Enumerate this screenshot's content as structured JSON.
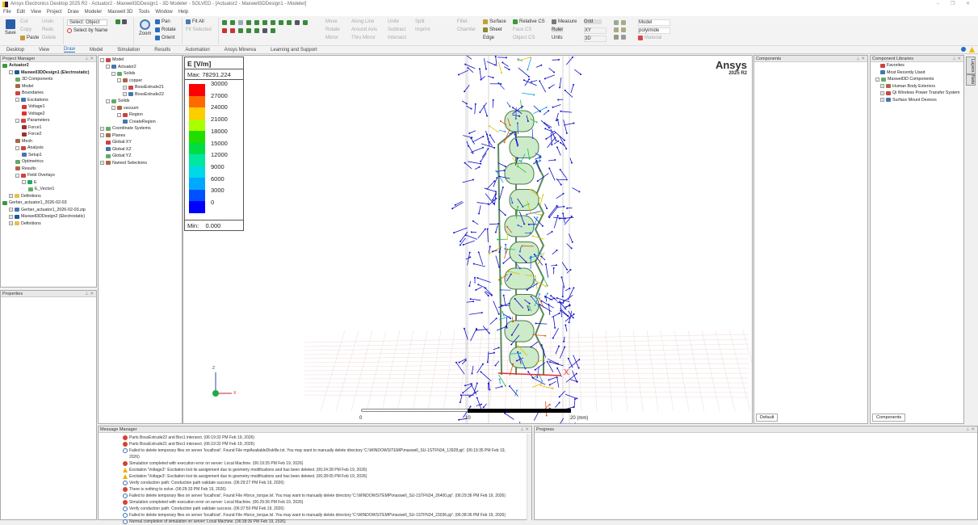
{
  "window": {
    "title": "Ansys Electronics Desktop 2025 R2 - Actuator2 - Maxwell3DDesign1 - 3D Modeler - SOLVED - [Actuator2 - Maxwell3DDesign1 - Modeler]",
    "controls": "–  ❐  ✕"
  },
  "menu": [
    "File",
    "Edit",
    "View",
    "Project",
    "Draw",
    "Modeler",
    "Maxwell 3D",
    "Tools",
    "Window",
    "Help"
  ],
  "ribbon": {
    "save": "Save",
    "cut": "Cut",
    "copy": "Copy",
    "paste": "Paste",
    "undo": "Undo",
    "redo": "Redo",
    "delete": "Delete",
    "select_mode": "Select: Object",
    "select_by_name": "Select by Name",
    "zoom": "Zoom",
    "pan": "Pan",
    "rotate": "Rotate",
    "orient": "Orient",
    "fit_all": "Fit All",
    "fit_selected": "Fit Selected",
    "move": "Move",
    "rotate2": "Rotate",
    "mirror": "Mirror",
    "along_line": "Along Line",
    "around_axis": "Around Axis",
    "thru_mirror": "Thru Mirror",
    "unite": "Unite",
    "subtract": "Subtract",
    "intersect": "Intersect",
    "split": "Split",
    "imprint": "Imprint",
    "fillet": "Fillet",
    "chamfer": "Chamfer",
    "surface": "Surface",
    "sheet": "Sheet",
    "edge": "Edge",
    "relative_cs": "Relative CS",
    "face_cs": "Face CS",
    "object_cs": "Object CS",
    "measure": "Measure",
    "ruler": "Ruler",
    "units": "Units",
    "grid": "Grid",
    "plane": "XY",
    "view_mode": "3D",
    "render_mode": "Model",
    "material_value": "polyimide",
    "material": "Material"
  },
  "tabs": [
    "Desktop",
    "View",
    "Draw",
    "Model",
    "Simulation",
    "Results",
    "Automation",
    "Ansys Minerva",
    "Learning and Support"
  ],
  "active_tab": "Draw",
  "project_manager": {
    "title": "Project Manager",
    "items": [
      {
        "label": "Actuator2",
        "level": 0,
        "icon": "project-icon",
        "bold": true
      },
      {
        "label": "Maxwell3DDesign1 (Electrostatic)",
        "level": 1,
        "icon": "design-icon",
        "bold": true,
        "exp": "-"
      },
      {
        "label": "3D Components",
        "level": 2,
        "icon": "components-icon"
      },
      {
        "label": "Model",
        "level": 2,
        "icon": "model-icon"
      },
      {
        "label": "Boundaries",
        "level": 2,
        "icon": "boundaries-icon"
      },
      {
        "label": "Excitations",
        "level": 2,
        "icon": "excitations-icon",
        "exp": "-"
      },
      {
        "label": "Voltage1",
        "level": 3,
        "icon": "voltage-icon"
      },
      {
        "label": "Voltage2",
        "level": 3,
        "icon": "voltage-icon"
      },
      {
        "label": "Parameters",
        "level": 2,
        "icon": "parameters-icon",
        "exp": "-"
      },
      {
        "label": "Force1",
        "level": 3,
        "icon": "force-icon"
      },
      {
        "label": "Force2",
        "level": 3,
        "icon": "force-icon"
      },
      {
        "label": "Mesh",
        "level": 2,
        "icon": "mesh-icon"
      },
      {
        "label": "Analysis",
        "level": 2,
        "icon": "analysis-icon",
        "exp": "-"
      },
      {
        "label": "Setup1",
        "level": 3,
        "icon": "setup-icon"
      },
      {
        "label": "Optimetrics",
        "level": 2,
        "icon": "optimetrics-icon"
      },
      {
        "label": "Results",
        "level": 2,
        "icon": "results-icon"
      },
      {
        "label": "Field Overlays",
        "level": 2,
        "icon": "field-overlays-icon",
        "exp": "-"
      },
      {
        "label": "E",
        "level": 3,
        "icon": "field-icon",
        "exp": "-"
      },
      {
        "label": "E_Vector1",
        "level": 4,
        "icon": "vector-icon"
      },
      {
        "label": "Definitions",
        "level": 1,
        "icon": "folder-icon",
        "exp": "+"
      },
      {
        "label": "Gerber_actuator1_2026-02-03",
        "level": 0,
        "icon": "project-icon"
      },
      {
        "label": "Gerber_actuator1_2026-02-03.zip",
        "level": 1,
        "icon": "zip-icon",
        "exp": "+"
      },
      {
        "label": "Maxwell3DDesign2 (Electrostatic)",
        "level": 1,
        "icon": "design-icon",
        "exp": "+"
      },
      {
        "label": "Definitions",
        "level": 1,
        "icon": "folder-icon",
        "exp": "+"
      }
    ]
  },
  "properties": {
    "title": "Properties"
  },
  "model_tree": [
    {
      "label": "Model",
      "level": 0,
      "exp": "-"
    },
    {
      "label": "Actuator2",
      "level": 1,
      "exp": "-"
    },
    {
      "label": "Solids",
      "level": 2,
      "exp": "-"
    },
    {
      "label": "copper",
      "level": 3,
      "exp": "-"
    },
    {
      "label": "BossExtrude21",
      "level": 4,
      "exp": "+"
    },
    {
      "label": "BossExtrude22",
      "level": 4,
      "exp": "+"
    },
    {
      "label": "Solids",
      "level": 1,
      "exp": "-"
    },
    {
      "label": "vacuum",
      "level": 2,
      "exp": "-"
    },
    {
      "label": "Region",
      "level": 3,
      "exp": "-"
    },
    {
      "label": "CreateRegion",
      "level": 4
    },
    {
      "label": "Coordinate Systems",
      "level": 0,
      "exp": "+"
    },
    {
      "label": "Planes",
      "level": 0,
      "exp": "-"
    },
    {
      "label": "Global:XY",
      "level": 1
    },
    {
      "label": "Global:XZ",
      "level": 1
    },
    {
      "label": "Global:YZ",
      "level": 1
    },
    {
      "label": "Named Selections",
      "level": 0,
      "exp": "+"
    }
  ],
  "legend": {
    "title": "E [V/m]",
    "max": "Max: 78291.224",
    "min_label": "Min:",
    "min_value": "0.000",
    "ticks": [
      "30000",
      "27000",
      "24000",
      "21000",
      "18000",
      "15000",
      "12000",
      "9000",
      "6000",
      "3000",
      "0"
    ],
    "colors": [
      "#ff0000",
      "#ff6a00",
      "#ffcc00",
      "#aaff00",
      "#22dd00",
      "#00dd44",
      "#00e8a0",
      "#00d8e8",
      "#00a8ff",
      "#0050ff",
      "#0000ff"
    ]
  },
  "brand": {
    "name": "Ansys",
    "version": "2025 R2"
  },
  "ruler": {
    "ticks": [
      "0",
      "10",
      "20 (mm)"
    ]
  },
  "axes": {
    "z": "Z",
    "x": "X",
    "x_red": "X"
  },
  "components": {
    "title": "Components",
    "tab": "Default"
  },
  "component_libraries": {
    "title": "Component Libraries",
    "tab": "Components",
    "items": [
      {
        "label": "Favorites",
        "level": 1
      },
      {
        "label": "Most Recently Used",
        "level": 1
      },
      {
        "label": "Maxwell3D Components",
        "level": 0,
        "exp": "-"
      },
      {
        "label": "Human Body Exteriors",
        "level": 1,
        "exp": "+"
      },
      {
        "label": "Qi Wireless Power Transfer System",
        "level": 1,
        "exp": "+"
      },
      {
        "label": "Surface Mount Devices",
        "level": 1,
        "exp": "+"
      }
    ]
  },
  "side_tabs": [
    "Layers",
    "Nets"
  ],
  "message_manager": {
    "title": "Message Manager",
    "messages": [
      {
        "type": "err",
        "text": "Parts BossExtrude22 and Box1 intersect. (06:19:32 PM  Feb 19, 2026)"
      },
      {
        "type": "err",
        "text": "Parts BossExtrude21 and Box1 intersect. (06:19:32 PM  Feb 19, 2026)"
      },
      {
        "type": "info",
        "text": "Failed to delete temporary files on server 'localhost'. Found File mpiAvailableDiskfile.txt. You may want to manually delete directory 'C:\\WINDOWS\\TEMP\\maxwell_SU-1STFN34_13928.pjt'. (06:19:35 PM  Feb 19,"
      },
      {
        "type": "none",
        "text": "2026)"
      },
      {
        "type": "err",
        "text": "Simulation completed with execution error on server: Local Machine. (06:19:35 PM  Feb 19, 2026)"
      },
      {
        "type": "warn",
        "text": "Excitation 'Voltage3': Excitation lost its assignment due to geometry modifications and has been deleted. (06:24:28 PM  Feb 19, 2026)"
      },
      {
        "type": "warn",
        "text": "Excitation 'Voltage3': Excitation lost its assignment due to geometry modifications and has been deleted. (06:28:05 PM  Feb 19, 2026)"
      },
      {
        "type": "info",
        "text": "Verify conduction path: Conduction path validate success. (06:29:27 PM  Feb 19, 2026)"
      },
      {
        "type": "err",
        "text": "There is nothing to solve. (06:29:33 PM  Feb 19, 2026)"
      },
      {
        "type": "info",
        "text": "Failed to delete temporary files on server 'localhost'. Found File #force_torque.lvl. You may want to manually delete directory 'C:\\WINDOWS\\TEMP\\maxwell_SU-1STFN34_26400.pjt'. (06:29:36 PM  Feb 19, 2026)"
      },
      {
        "type": "err",
        "text": "Simulation completed with execution error on server: Local Machine. (06:29:36 PM  Feb 19, 2026)"
      },
      {
        "type": "info",
        "text": "Verify conduction path: Conduction path validate success. (06:37:50 PM  Feb 19, 2026)"
      },
      {
        "type": "info",
        "text": "Failed to delete temporary files on server 'localhost'. Found File #force_torque.lvl. You may want to manually delete directory 'C:\\WINDOWS\\TEMP\\maxwell_SU-1STFN34_23036.pjt'. (06:38:36 PM  Feb 19, 2026)"
      },
      {
        "type": "info",
        "text": "Normal completion of simulation on server: Local Machine. (06:38:36 PM  Feb 19, 2026)"
      }
    ]
  },
  "progress": {
    "title": "Progress"
  }
}
